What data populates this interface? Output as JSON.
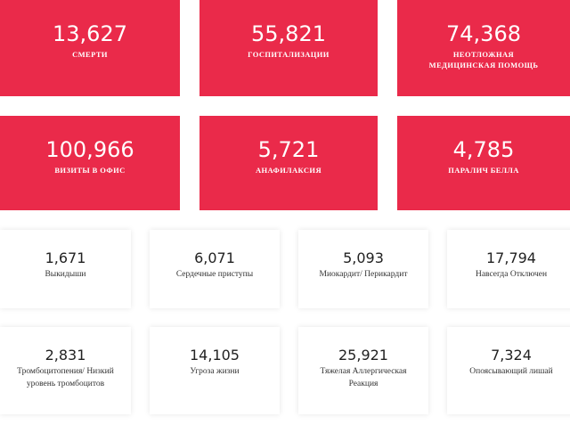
{
  "red_cards": [
    {
      "number": "13,627",
      "label": "СМЕРТИ"
    },
    {
      "number": "55,821",
      "label": "ГОСПИТАЛИЗАЦИИ"
    },
    {
      "number": "74,368",
      "label": "НЕОТЛОЖНАЯ МЕДИЦИНСКАЯ ПОМОЩЬ"
    },
    {
      "number": "100,966",
      "label": "ВИЗИТЫ В ОФИС"
    },
    {
      "number": "5,721",
      "label": "АНАФИЛАКСИЯ"
    },
    {
      "number": "4,785",
      "label": "ПАРАЛИЧ БЕЛЛА"
    }
  ],
  "white_cards": [
    {
      "number": "1,671",
      "label": "Выкидыши"
    },
    {
      "number": "6,071",
      "label": "Сердечные приступы"
    },
    {
      "number": "5,093",
      "label": "Миокардит/ Перикардит"
    },
    {
      "number": "17,794",
      "label": "Навсегда Отключен"
    },
    {
      "number": "2,831",
      "label": "Тромбоцитопения/ Низкий уровень тромбоцитов"
    },
    {
      "number": "14,105",
      "label": "Угроза жизни"
    },
    {
      "number": "25,921",
      "label": "Тяжелая Аллергическая Реакция"
    },
    {
      "number": "7,324",
      "label": "Опоясывающий лишай"
    }
  ]
}
